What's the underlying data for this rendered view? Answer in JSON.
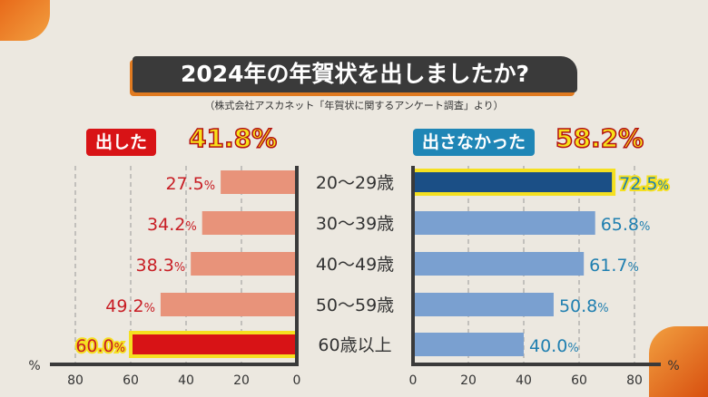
{
  "title": "2024年の年賀状を出しましたか?",
  "source": "（株式会社アスカネット「年賀状に関するアンケート調査」より）",
  "legend": {
    "sent": {
      "label": "出した",
      "total": "41.8%",
      "color": "#d81316"
    },
    "not_sent": {
      "label": "出さなかった",
      "total": "58.2%",
      "color": "#1f86b6"
    }
  },
  "chart_data": {
    "type": "bar",
    "title": "2024年の年賀状を出しましたか?",
    "categories": [
      "20〜29歳",
      "30〜39歳",
      "40〜49歳",
      "50〜59歳",
      "60歳以上"
    ],
    "series": [
      {
        "name": "出した",
        "values": [
          27.5,
          34.2,
          38.3,
          49.2,
          60.0
        ],
        "labels": [
          "27.5",
          "34.2",
          "38.3",
          "49.2",
          "60.0"
        ],
        "color": "#e8937a",
        "highlight_color": "#d81316",
        "highlight_index": 4,
        "label_color": "#c81d24"
      },
      {
        "name": "出さなかった",
        "values": [
          72.5,
          65.8,
          61.7,
          50.8,
          40.0
        ],
        "labels": [
          "72.5",
          "65.8",
          "61.7",
          "50.8",
          "40.0"
        ],
        "color": "#7aa0d0",
        "highlight_color": "#1b4f86",
        "highlight_index": 0,
        "label_color": "#1f7fb0"
      }
    ],
    "unit": "%",
    "xlim": [
      0,
      80
    ],
    "ticks": [
      "0",
      "20",
      "40",
      "60",
      "80"
    ],
    "grid": true
  }
}
